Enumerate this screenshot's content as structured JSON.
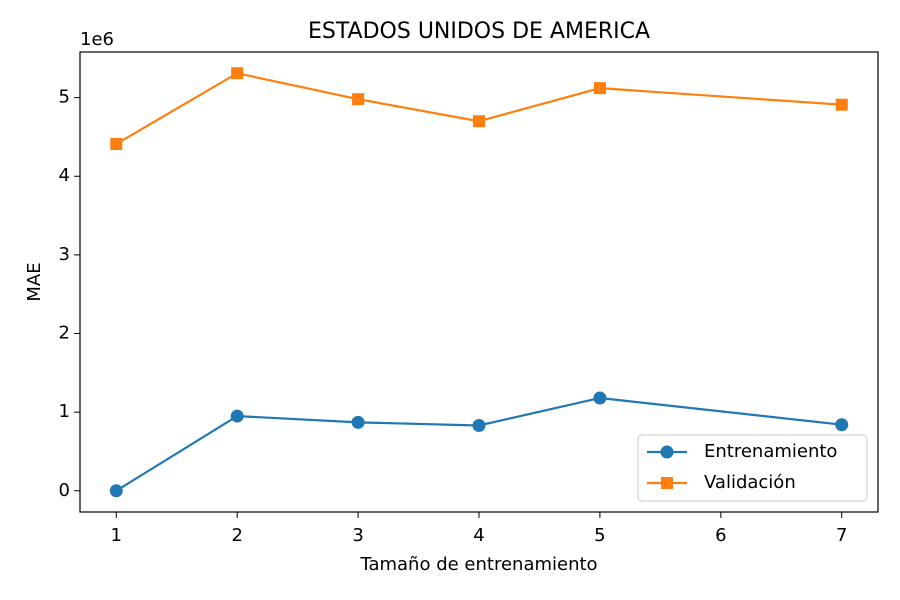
{
  "chart_data": {
    "type": "line",
    "title": "ESTADOS UNIDOS DE AMERICA",
    "x_label": "Tamaño de entrenamiento",
    "y_label": "MAE",
    "y_offset_label": "1e6",
    "x": [
      1,
      2,
      3,
      4,
      5,
      7
    ],
    "series": [
      {
        "name": "Entrenamiento",
        "color": "#1f77b4",
        "marker": "circle",
        "values": [
          0,
          0.95,
          0.87,
          0.83,
          1.18,
          0.84
        ]
      },
      {
        "name": "Validación",
        "color": "#ff7f0e",
        "marker": "square",
        "values": [
          4.41,
          5.31,
          4.98,
          4.7,
          5.12,
          4.91
        ]
      }
    ],
    "xlim": [
      0.7,
      7.3
    ],
    "xticks": [
      1,
      2,
      3,
      4,
      5,
      6,
      7
    ],
    "ylim": [
      -0.27,
      5.58
    ],
    "yticks": [
      0,
      1,
      2,
      3,
      4,
      5
    ],
    "grid": false,
    "legend": "lower right"
  }
}
